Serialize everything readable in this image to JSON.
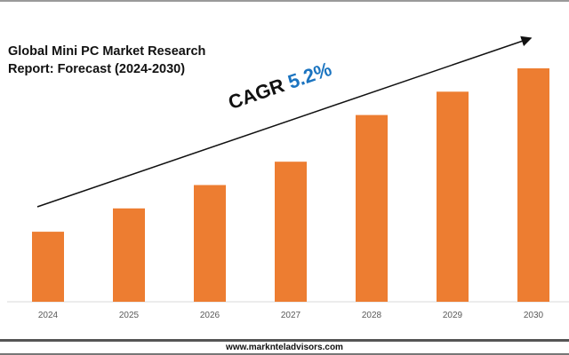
{
  "chart_data": {
    "type": "bar",
    "title": "Global Mini PC Market Research Report: Forecast (2024-2030)",
    "categories": [
      "2024",
      "2025",
      "2026",
      "2027",
      "2028",
      "2029",
      "2030"
    ],
    "values": [
      30,
      40,
      50,
      60,
      80,
      90,
      100
    ],
    "value_units": "relative index (no axis shown)",
    "xlabel": "",
    "ylabel": "",
    "ylim": [
      0,
      100
    ],
    "grid": false,
    "bar_color": "#ed7d31",
    "annotation": {
      "label": "CAGR",
      "value": "5.2%",
      "value_color": "#1b74c0"
    }
  },
  "footer": {
    "url": "www.marknteladvisors.com"
  }
}
